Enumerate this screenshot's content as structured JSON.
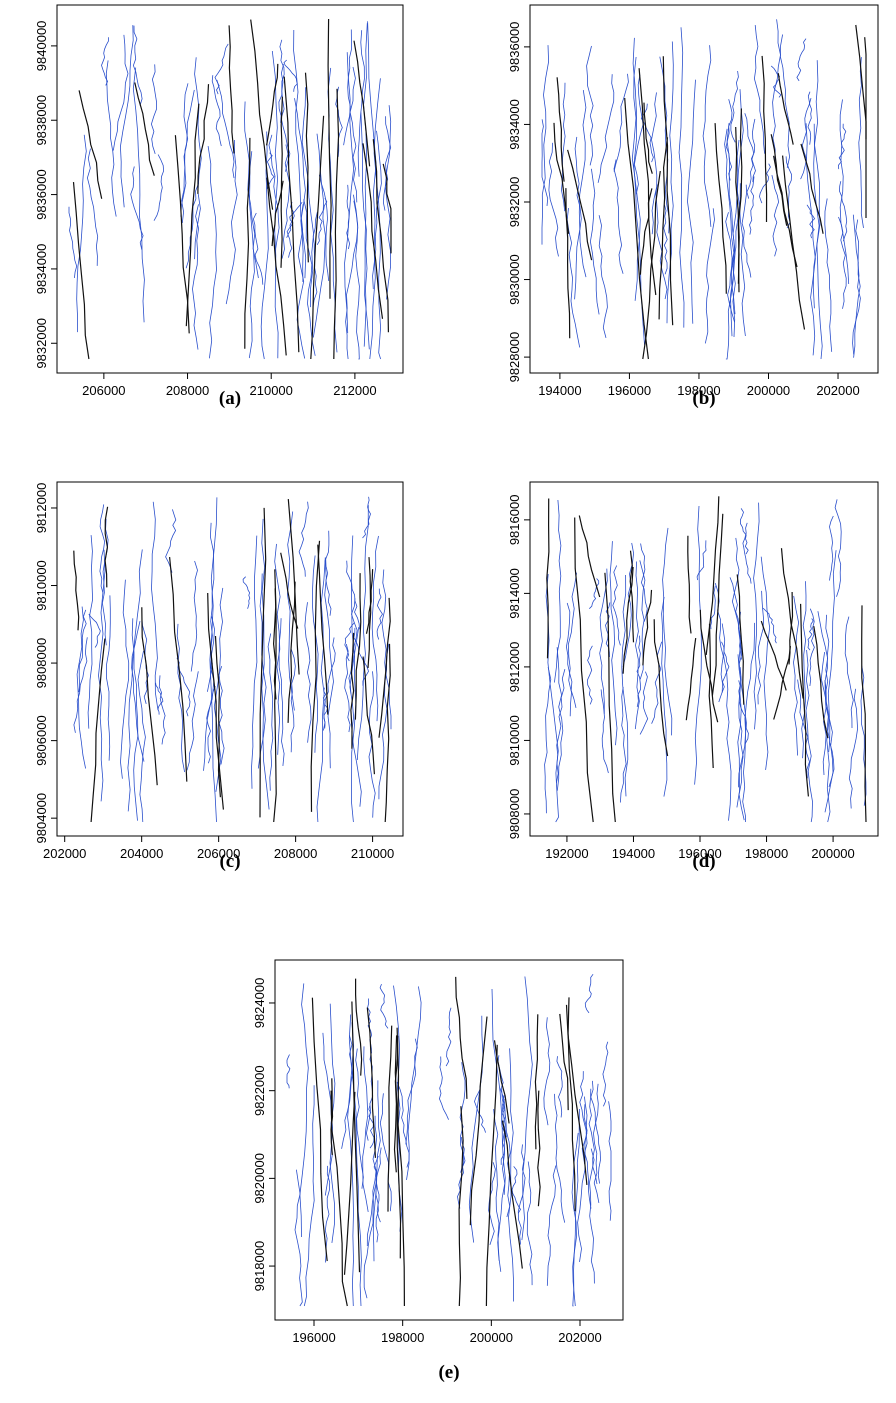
{
  "chart_data": [
    {
      "type": "map",
      "caption": "(a)",
      "xlim": [
        204880,
        213150
      ],
      "ylim": [
        9831200,
        9841100
      ],
      "xticks": [
        206000,
        208000,
        210000,
        212000
      ],
      "yticks": [
        9832000,
        9834000,
        9836000,
        9838000,
        9840000
      ]
    },
    {
      "type": "map",
      "caption": "(b)",
      "xlim": [
        193140,
        203150
      ],
      "ylim": [
        9827590,
        9837080
      ],
      "xticks": [
        194000,
        196000,
        198000,
        200000,
        202000
      ],
      "yticks": [
        9828000,
        9830000,
        9832000,
        9834000,
        9836000
      ]
    },
    {
      "type": "map",
      "caption": "(c)",
      "xlim": [
        201800,
        210790
      ],
      "ylim": [
        9803540,
        9812670
      ],
      "xticks": [
        202000,
        204000,
        206000,
        208000,
        210000
      ],
      "yticks": [
        9804000,
        9806000,
        9808000,
        9810000,
        9812000
      ]
    },
    {
      "type": "map",
      "caption": "(d)",
      "xlim": [
        190890,
        201350
      ],
      "ylim": [
        9807400,
        9817030
      ],
      "xticks": [
        192000,
        194000,
        196000,
        198000,
        200000
      ],
      "yticks": [
        9808000,
        9810000,
        9812000,
        9814000,
        9816000
      ]
    },
    {
      "type": "map",
      "caption": "(e)",
      "xlim": [
        195120,
        202970
      ],
      "ylim": [
        9816770,
        9824980
      ],
      "xticks": [
        196000,
        198000,
        200000,
        202000
      ],
      "yticks": [
        9818000,
        9820000,
        9822000,
        9824000
      ]
    }
  ]
}
